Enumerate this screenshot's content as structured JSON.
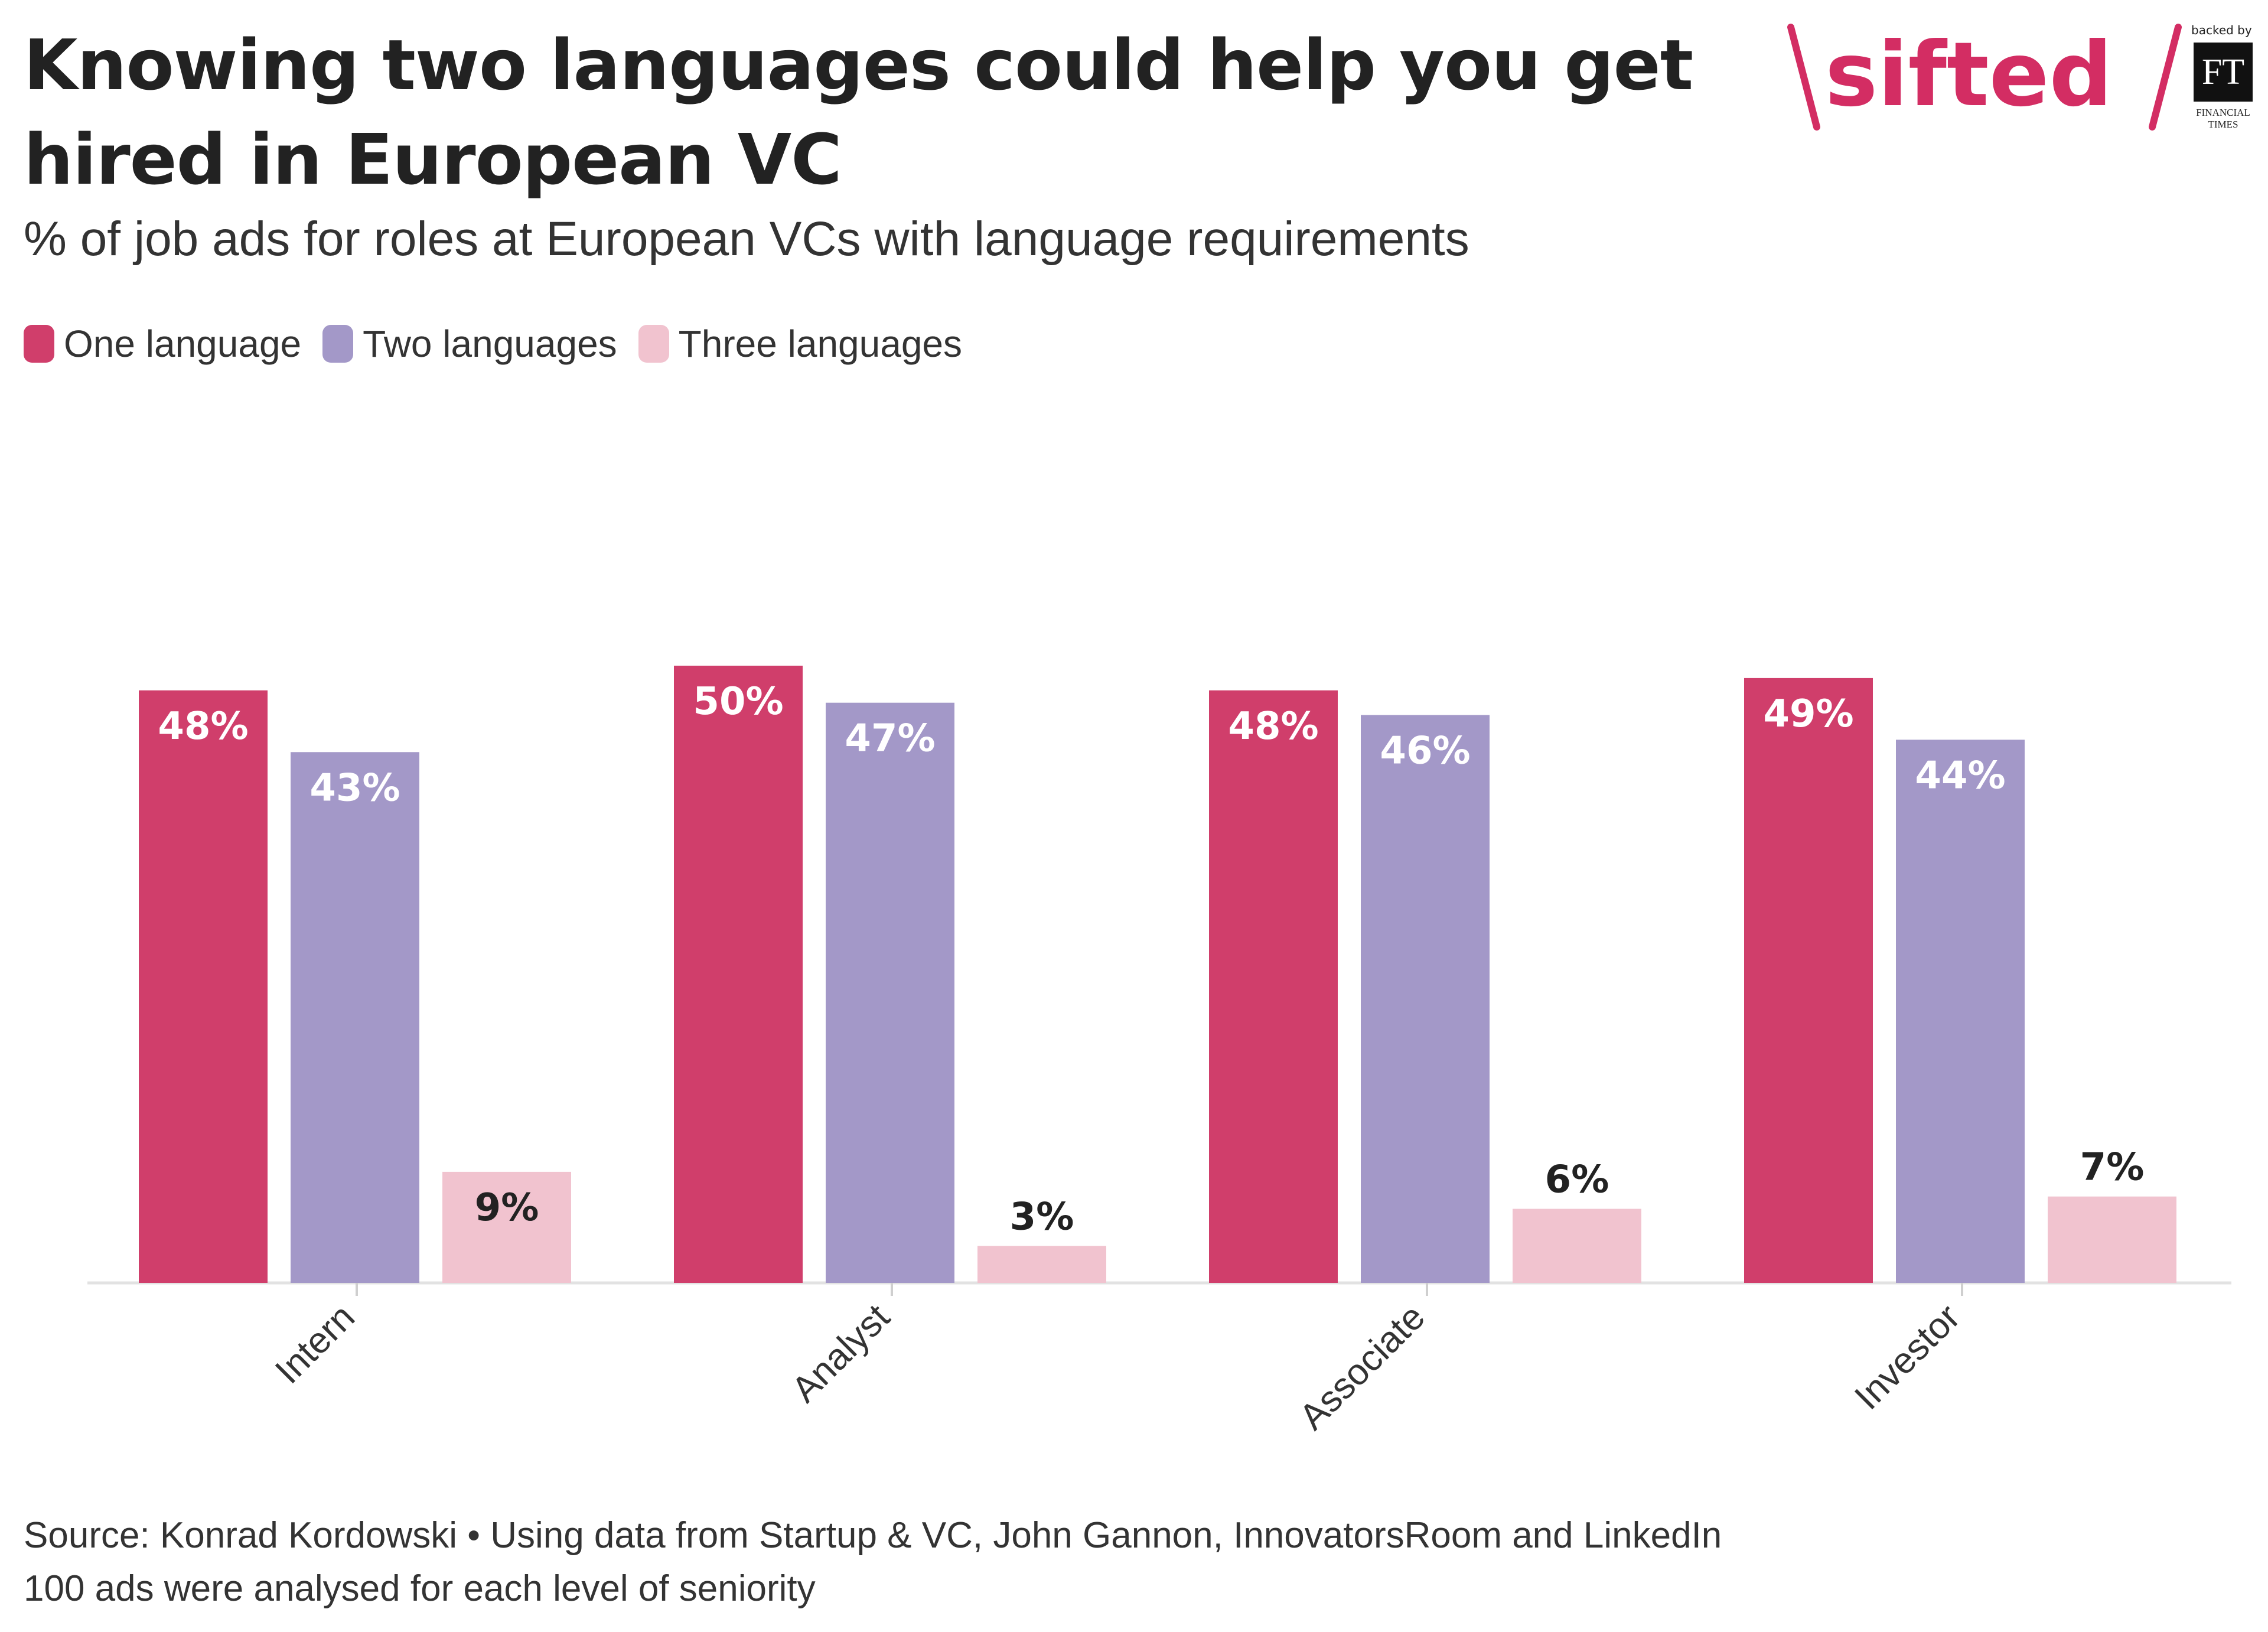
{
  "header": {
    "title": "Knowing two languages could help you get hired in European VC",
    "subtitle": "% of job ads for roles at European VCs with language requirements"
  },
  "logo": {
    "brand": "sifted",
    "backed_by": "backed by",
    "ft": "FT",
    "ft_line1": "FINANCIAL",
    "ft_line2": "TIMES"
  },
  "colors": {
    "one": "#d03e6b",
    "two": "#a398c8",
    "three": "#f1c3cf",
    "axis": "#e2e2e2",
    "brand": "#d32d63"
  },
  "chart_data": {
    "type": "bar",
    "title": "Knowing two languages could help you get hired in European VC",
    "subtitle": "% of job ads for roles at European VCs with language requirements",
    "categories": [
      "Intern",
      "Analyst",
      "Associate",
      "Investor"
    ],
    "series": [
      {
        "name": "One language",
        "values": [
          48,
          50,
          48,
          49
        ],
        "labels": [
          "48%",
          "50%",
          "48%",
          "49%"
        ]
      },
      {
        "name": "Two languages",
        "values": [
          43,
          47,
          46,
          44
        ],
        "labels": [
          "43%",
          "47%",
          "46%",
          "44%"
        ]
      },
      {
        "name": "Three languages",
        "values": [
          9,
          3,
          6,
          7
        ],
        "labels": [
          "9%",
          "3%",
          "6%",
          "7%"
        ]
      }
    ],
    "xlabel": "",
    "ylabel": "",
    "ylim": [
      0,
      60
    ],
    "grid": false,
    "legend": "top-left"
  },
  "footer": {
    "source": "Source: Konrad Kordowski • Using data from Startup & VC, John Gannon, InnovatorsRoom and LinkedIn",
    "note": "100 ads were analysed for each level of seniority"
  }
}
